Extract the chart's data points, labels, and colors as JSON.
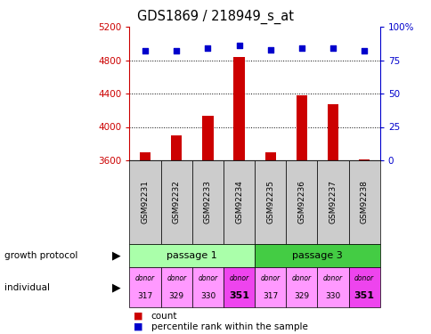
{
  "title": "GDS1869 / 218949_s_at",
  "samples": [
    "GSM92231",
    "GSM92232",
    "GSM92233",
    "GSM92234",
    "GSM92235",
    "GSM92236",
    "GSM92237",
    "GSM92238"
  ],
  "counts": [
    3700,
    3900,
    4130,
    4840,
    3700,
    4380,
    4270,
    3615
  ],
  "percentiles": [
    82,
    82,
    84,
    86,
    83,
    84,
    84,
    82
  ],
  "ylim_left": [
    3600,
    5200
  ],
  "ylim_right": [
    0,
    100
  ],
  "yticks_left": [
    3600,
    4000,
    4400,
    4800,
    5200
  ],
  "yticks_right": [
    0,
    25,
    50,
    75,
    100
  ],
  "bar_color": "#cc0000",
  "dot_color": "#0000cc",
  "passage1_color": "#aaffaa",
  "passage3_color": "#44cc44",
  "donor_colors_light": "#ff99ff",
  "donor_colors_dark": "#ee44ee",
  "donor_highlight": [
    3,
    7
  ],
  "donors": [
    "317",
    "329",
    "330",
    "351",
    "317",
    "329",
    "330",
    "351"
  ],
  "grid_color": "#000000",
  "axis_color_left": "#cc0000",
  "axis_color_right": "#0000cc",
  "sample_box_color": "#cccccc",
  "background_color": "#ffffff"
}
